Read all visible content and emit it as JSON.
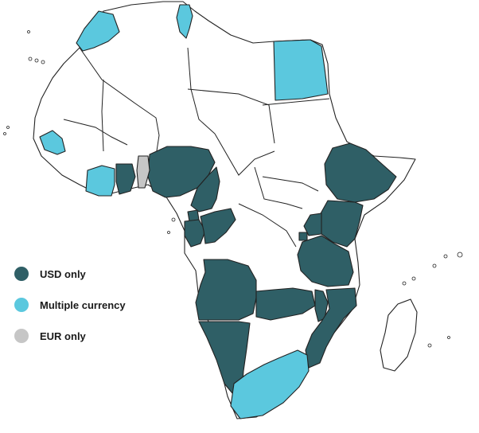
{
  "colors": {
    "usd_only": "#2f5f66",
    "multiple_currency": "#5bc8de",
    "eur_only": "#c6c6c6",
    "none": "#ffffff",
    "border": "#222222"
  },
  "legend": [
    {
      "key": "usd_only",
      "label": "USD only",
      "color": "#2f5f66"
    },
    {
      "key": "multiple_currency",
      "label": "Multiple currency",
      "color": "#5bc8de"
    },
    {
      "key": "eur_only",
      "label": "EUR only",
      "color": "#c6c6c6"
    }
  ],
  "regions": [
    {
      "name": "Nigeria",
      "category": "usd_only"
    },
    {
      "name": "Ghana",
      "category": "usd_only"
    },
    {
      "name": "Cameroon",
      "category": "usd_only"
    },
    {
      "name": "Equatorial Guinea",
      "category": "usd_only"
    },
    {
      "name": "Gabon",
      "category": "usd_only"
    },
    {
      "name": "Republic of the Congo",
      "category": "usd_only"
    },
    {
      "name": "Ethiopia",
      "category": "usd_only"
    },
    {
      "name": "Kenya",
      "category": "usd_only"
    },
    {
      "name": "Uganda",
      "category": "usd_only"
    },
    {
      "name": "Rwanda",
      "category": "usd_only"
    },
    {
      "name": "Tanzania",
      "category": "usd_only"
    },
    {
      "name": "Angola",
      "category": "usd_only"
    },
    {
      "name": "Zambia",
      "category": "usd_only"
    },
    {
      "name": "Malawi",
      "category": "usd_only"
    },
    {
      "name": "Mozambique",
      "category": "usd_only"
    },
    {
      "name": "Namibia",
      "category": "usd_only"
    },
    {
      "name": "Morocco",
      "category": "multiple_currency"
    },
    {
      "name": "Tunisia",
      "category": "multiple_currency"
    },
    {
      "name": "Egypt",
      "category": "multiple_currency"
    },
    {
      "name": "Senegal",
      "category": "multiple_currency"
    },
    {
      "name": "Cote d'Ivoire",
      "category": "multiple_currency"
    },
    {
      "name": "South Africa",
      "category": "multiple_currency"
    },
    {
      "name": "Togo",
      "category": "eur_only"
    }
  ]
}
